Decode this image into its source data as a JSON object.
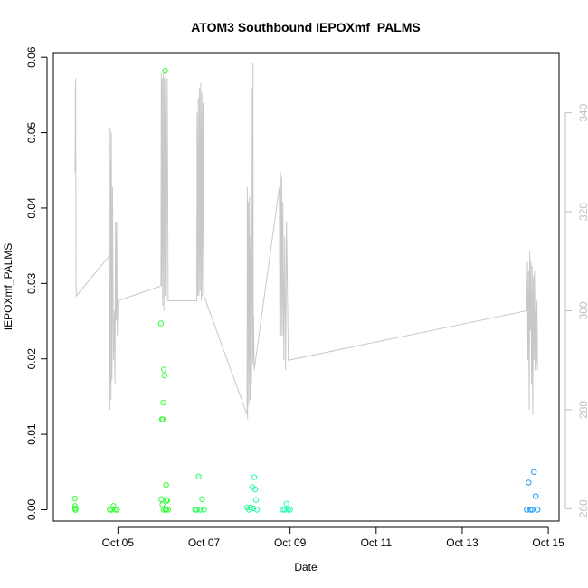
{
  "chart_data": {
    "type": "scatter",
    "title": "ATOM3 Southbound IEPOXmf_PALMS",
    "xlabel": "Date",
    "ylabel": "IEPOXmf_PALMS",
    "xlim": [
      "2016-10-03 12:00",
      "2016-10-15 06:00"
    ],
    "ylim": [
      -0.0015,
      0.0605
    ],
    "x_ticks": [
      "Oct 05",
      "Oct 07",
      "Oct 09",
      "Oct 11",
      "Oct 13",
      "Oct 15"
    ],
    "y_ticks": [
      "0.00",
      "0.01",
      "0.02",
      "0.03",
      "0.04",
      "0.05",
      "0.06"
    ],
    "y2_ticks": [
      "260",
      "280",
      "300",
      "320",
      "340"
    ],
    "y2_range": [
      257.5,
      352
    ],
    "y2_color": "#bfbfbf",
    "grid": false,
    "legend": "none",
    "series": [
      {
        "color": "#33ff33",
        "points": [
          [
            "2016-10-04 00:00",
            0.0015
          ],
          [
            "2016-10-04 00:06",
            0.0005
          ],
          [
            "2016-10-04 00:12",
            0.0002
          ],
          [
            "2016-10-04 00:18",
            0.0
          ],
          [
            "2016-10-04 00:24",
            0.0
          ],
          [
            "2016-10-04 19:30",
            0.0
          ],
          [
            "2016-10-04 20:30",
            0.0
          ],
          [
            "2016-10-04 21:30",
            0.0005
          ],
          [
            "2016-10-04 22:30",
            0.0
          ],
          [
            "2016-10-04 23:30",
            0.0
          ],
          [
            "2016-10-06 00:00",
            0.0247
          ],
          [
            "2016-10-06 00:30",
            0.012
          ],
          [
            "2016-10-06 01:00",
            0.012
          ],
          [
            "2016-10-06 01:20",
            0.0142
          ],
          [
            "2016-10-06 01:40",
            0.0186
          ],
          [
            "2016-10-06 02:00",
            0.0178
          ],
          [
            "2016-10-06 02:20",
            0.0582
          ],
          [
            "2016-10-06 02:50",
            0.0033
          ],
          [
            "2016-10-06 03:10",
            0.0013
          ],
          [
            "2016-10-06 03:30",
            0.0012
          ],
          [
            "2016-10-06 00:10",
            0.0014
          ],
          [
            "2016-10-06 00:50",
            0.0007
          ],
          [
            "2016-10-06 01:30",
            0.0
          ],
          [
            "2016-10-06 02:30",
            0.0
          ],
          [
            "2016-10-06 03:00",
            0.0
          ],
          [
            "2016-10-06 04:00",
            0.0
          ]
        ]
      },
      {
        "color": "#22ff55",
        "points": [
          [
            "2016-10-06 19:00",
            0.0
          ],
          [
            "2016-10-06 20:00",
            0.0
          ],
          [
            "2016-10-06 21:00",
            0.0044
          ],
          [
            "2016-10-06 22:00",
            0.0
          ],
          [
            "2016-10-06 23:00",
            0.0014
          ],
          [
            "2016-10-07 00:00",
            0.0
          ]
        ]
      },
      {
        "color": "#22ff99",
        "points": [
          [
            "2016-10-08 00:00",
            0.0003
          ],
          [
            "2016-10-08 01:00",
            0.0
          ],
          [
            "2016-10-08 02:00",
            0.0003
          ],
          [
            "2016-10-08 03:00",
            0.003
          ],
          [
            "2016-10-08 04:00",
            0.0043
          ],
          [
            "2016-10-08 04:30",
            0.0027
          ],
          [
            "2016-10-08 05:00",
            0.0013
          ],
          [
            "2016-10-08 05:30",
            0.0
          ],
          [
            "2016-10-08 03:30",
            0.0002
          ]
        ]
      },
      {
        "color": "#22ffbb",
        "points": [
          [
            "2016-10-08 20:00",
            0.0
          ],
          [
            "2016-10-08 21:00",
            0.0
          ],
          [
            "2016-10-08 22:00",
            0.0008
          ],
          [
            "2016-10-08 23:00",
            0.0
          ],
          [
            "2016-10-09 00:00",
            0.0
          ]
        ]
      },
      {
        "color": "#1a9cff",
        "points": [
          [
            "2016-10-14 12:00",
            0.0
          ],
          [
            "2016-10-14 13:00",
            0.0036
          ],
          [
            "2016-10-14 14:00",
            0.0
          ],
          [
            "2016-10-14 15:00",
            0.0
          ],
          [
            "2016-10-14 16:00",
            0.005
          ],
          [
            "2016-10-14 17:00",
            0.0018
          ],
          [
            "2016-10-14 18:00",
            0.0
          ]
        ]
      }
    ],
    "secondary_line": {
      "color": "#c8c8c8",
      "points": [
        [
          "2016-10-04 00:00",
          328
        ],
        [
          "2016-10-04 00:10",
          330
        ],
        [
          "2016-10-04 00:15",
          345
        ],
        [
          "2016-10-04 00:20",
          328
        ],
        [
          "2016-10-04 00:25",
          347
        ],
        [
          "2016-10-04 00:30",
          327
        ],
        [
          "2016-10-04 00:40",
          305
        ],
        [
          "2016-10-04 00:45",
          303
        ],
        [
          "2016-10-04 19:00",
          311
        ],
        [
          "2016-10-04 19:10",
          280
        ],
        [
          "2016-10-04 19:20",
          300
        ],
        [
          "2016-10-04 19:30",
          280
        ],
        [
          "2016-10-04 19:40",
          337
        ],
        [
          "2016-10-04 19:50",
          285
        ],
        [
          "2016-10-04 20:00",
          330
        ],
        [
          "2016-10-04 20:10",
          282
        ],
        [
          "2016-10-04 20:20",
          336
        ],
        [
          "2016-10-04 20:40",
          286
        ],
        [
          "2016-10-04 21:00",
          325
        ],
        [
          "2016-10-04 21:30",
          290
        ],
        [
          "2016-10-04 22:00",
          300
        ],
        [
          "2016-10-04 22:20",
          285
        ],
        [
          "2016-10-04 22:40",
          318
        ],
        [
          "2016-10-04 23:00",
          298
        ],
        [
          "2016-10-04 23:20",
          318
        ],
        [
          "2016-10-04 23:40",
          295
        ],
        [
          "2016-10-05 00:00",
          302
        ],
        [
          "2016-10-06 00:00",
          305
        ],
        [
          "2016-10-06 00:10",
          348
        ],
        [
          "2016-10-06 00:20",
          305
        ],
        [
          "2016-10-06 00:40",
          347
        ],
        [
          "2016-10-06 01:00",
          301
        ],
        [
          "2016-10-06 01:20",
          348
        ],
        [
          "2016-10-06 01:40",
          300
        ],
        [
          "2016-10-06 02:00",
          347
        ],
        [
          "2016-10-06 02:20",
          303
        ],
        [
          "2016-10-06 02:40",
          348
        ],
        [
          "2016-10-06 03:00",
          302
        ],
        [
          "2016-10-06 03:30",
          347
        ],
        [
          "2016-10-06 04:00",
          302
        ],
        [
          "2016-10-06 20:00",
          302
        ],
        [
          "2016-10-06 20:10",
          340
        ],
        [
          "2016-10-06 20:30",
          303
        ],
        [
          "2016-10-06 20:50",
          343
        ],
        [
          "2016-10-06 21:10",
          303
        ],
        [
          "2016-10-06 21:30",
          345
        ],
        [
          "2016-10-06 21:50",
          304
        ],
        [
          "2016-10-06 22:10",
          346
        ],
        [
          "2016-10-06 22:30",
          302
        ],
        [
          "2016-10-06 22:50",
          344
        ],
        [
          "2016-10-06 23:10",
          303
        ],
        [
          "2016-10-06 23:30",
          342
        ],
        [
          "2016-10-07 00:00",
          303
        ],
        [
          "2016-10-08 00:00",
          279
        ],
        [
          "2016-10-08 00:10",
          325
        ],
        [
          "2016-10-08 00:20",
          278
        ],
        [
          "2016-10-08 00:40",
          322
        ],
        [
          "2016-10-08 01:00",
          281
        ],
        [
          "2016-10-08 01:20",
          323
        ],
        [
          "2016-10-08 01:40",
          282
        ],
        [
          "2016-10-08 02:00",
          315
        ],
        [
          "2016-10-08 02:30",
          285
        ],
        [
          "2016-10-08 03:00",
          345
        ],
        [
          "2016-10-08 03:10",
          289
        ],
        [
          "2016-10-08 03:20",
          350
        ],
        [
          "2016-10-08 03:30",
          290
        ],
        [
          "2016-10-08 03:40",
          299
        ],
        [
          "2016-10-08 04:00",
          288
        ],
        [
          "2016-10-08 18:00",
          325
        ],
        [
          "2016-10-08 18:20",
          294
        ],
        [
          "2016-10-08 18:40",
          328
        ],
        [
          "2016-10-08 19:00",
          295
        ],
        [
          "2016-10-08 19:20",
          327
        ],
        [
          "2016-10-08 19:40",
          295
        ],
        [
          "2016-10-08 20:00",
          322
        ],
        [
          "2016-10-08 20:30",
          290
        ],
        [
          "2016-10-08 21:00",
          315
        ],
        [
          "2016-10-08 21:30",
          288
        ],
        [
          "2016-10-08 22:00",
          318
        ],
        [
          "2016-10-08 23:00",
          290
        ],
        [
          "2016-10-14 12:00",
          300
        ],
        [
          "2016-10-14 12:20",
          310
        ],
        [
          "2016-10-14 12:40",
          290
        ],
        [
          "2016-10-14 13:00",
          308
        ],
        [
          "2016-10-14 13:20",
          280
        ],
        [
          "2016-10-14 13:40",
          312
        ],
        [
          "2016-10-14 14:00",
          296
        ],
        [
          "2016-10-14 14:20",
          310
        ],
        [
          "2016-10-14 14:40",
          285
        ],
        [
          "2016-10-14 15:00",
          309
        ],
        [
          "2016-10-14 15:20",
          279
        ],
        [
          "2016-10-14 15:40",
          307
        ],
        [
          "2016-10-14 16:00",
          290
        ],
        [
          "2016-10-14 16:20",
          308
        ],
        [
          "2016-10-14 16:40",
          288
        ],
        [
          "2016-10-14 17:00",
          300
        ],
        [
          "2016-10-14 17:20",
          289
        ],
        [
          "2016-10-14 17:40",
          302
        ],
        [
          "2016-10-14 18:00",
          288
        ]
      ]
    }
  }
}
